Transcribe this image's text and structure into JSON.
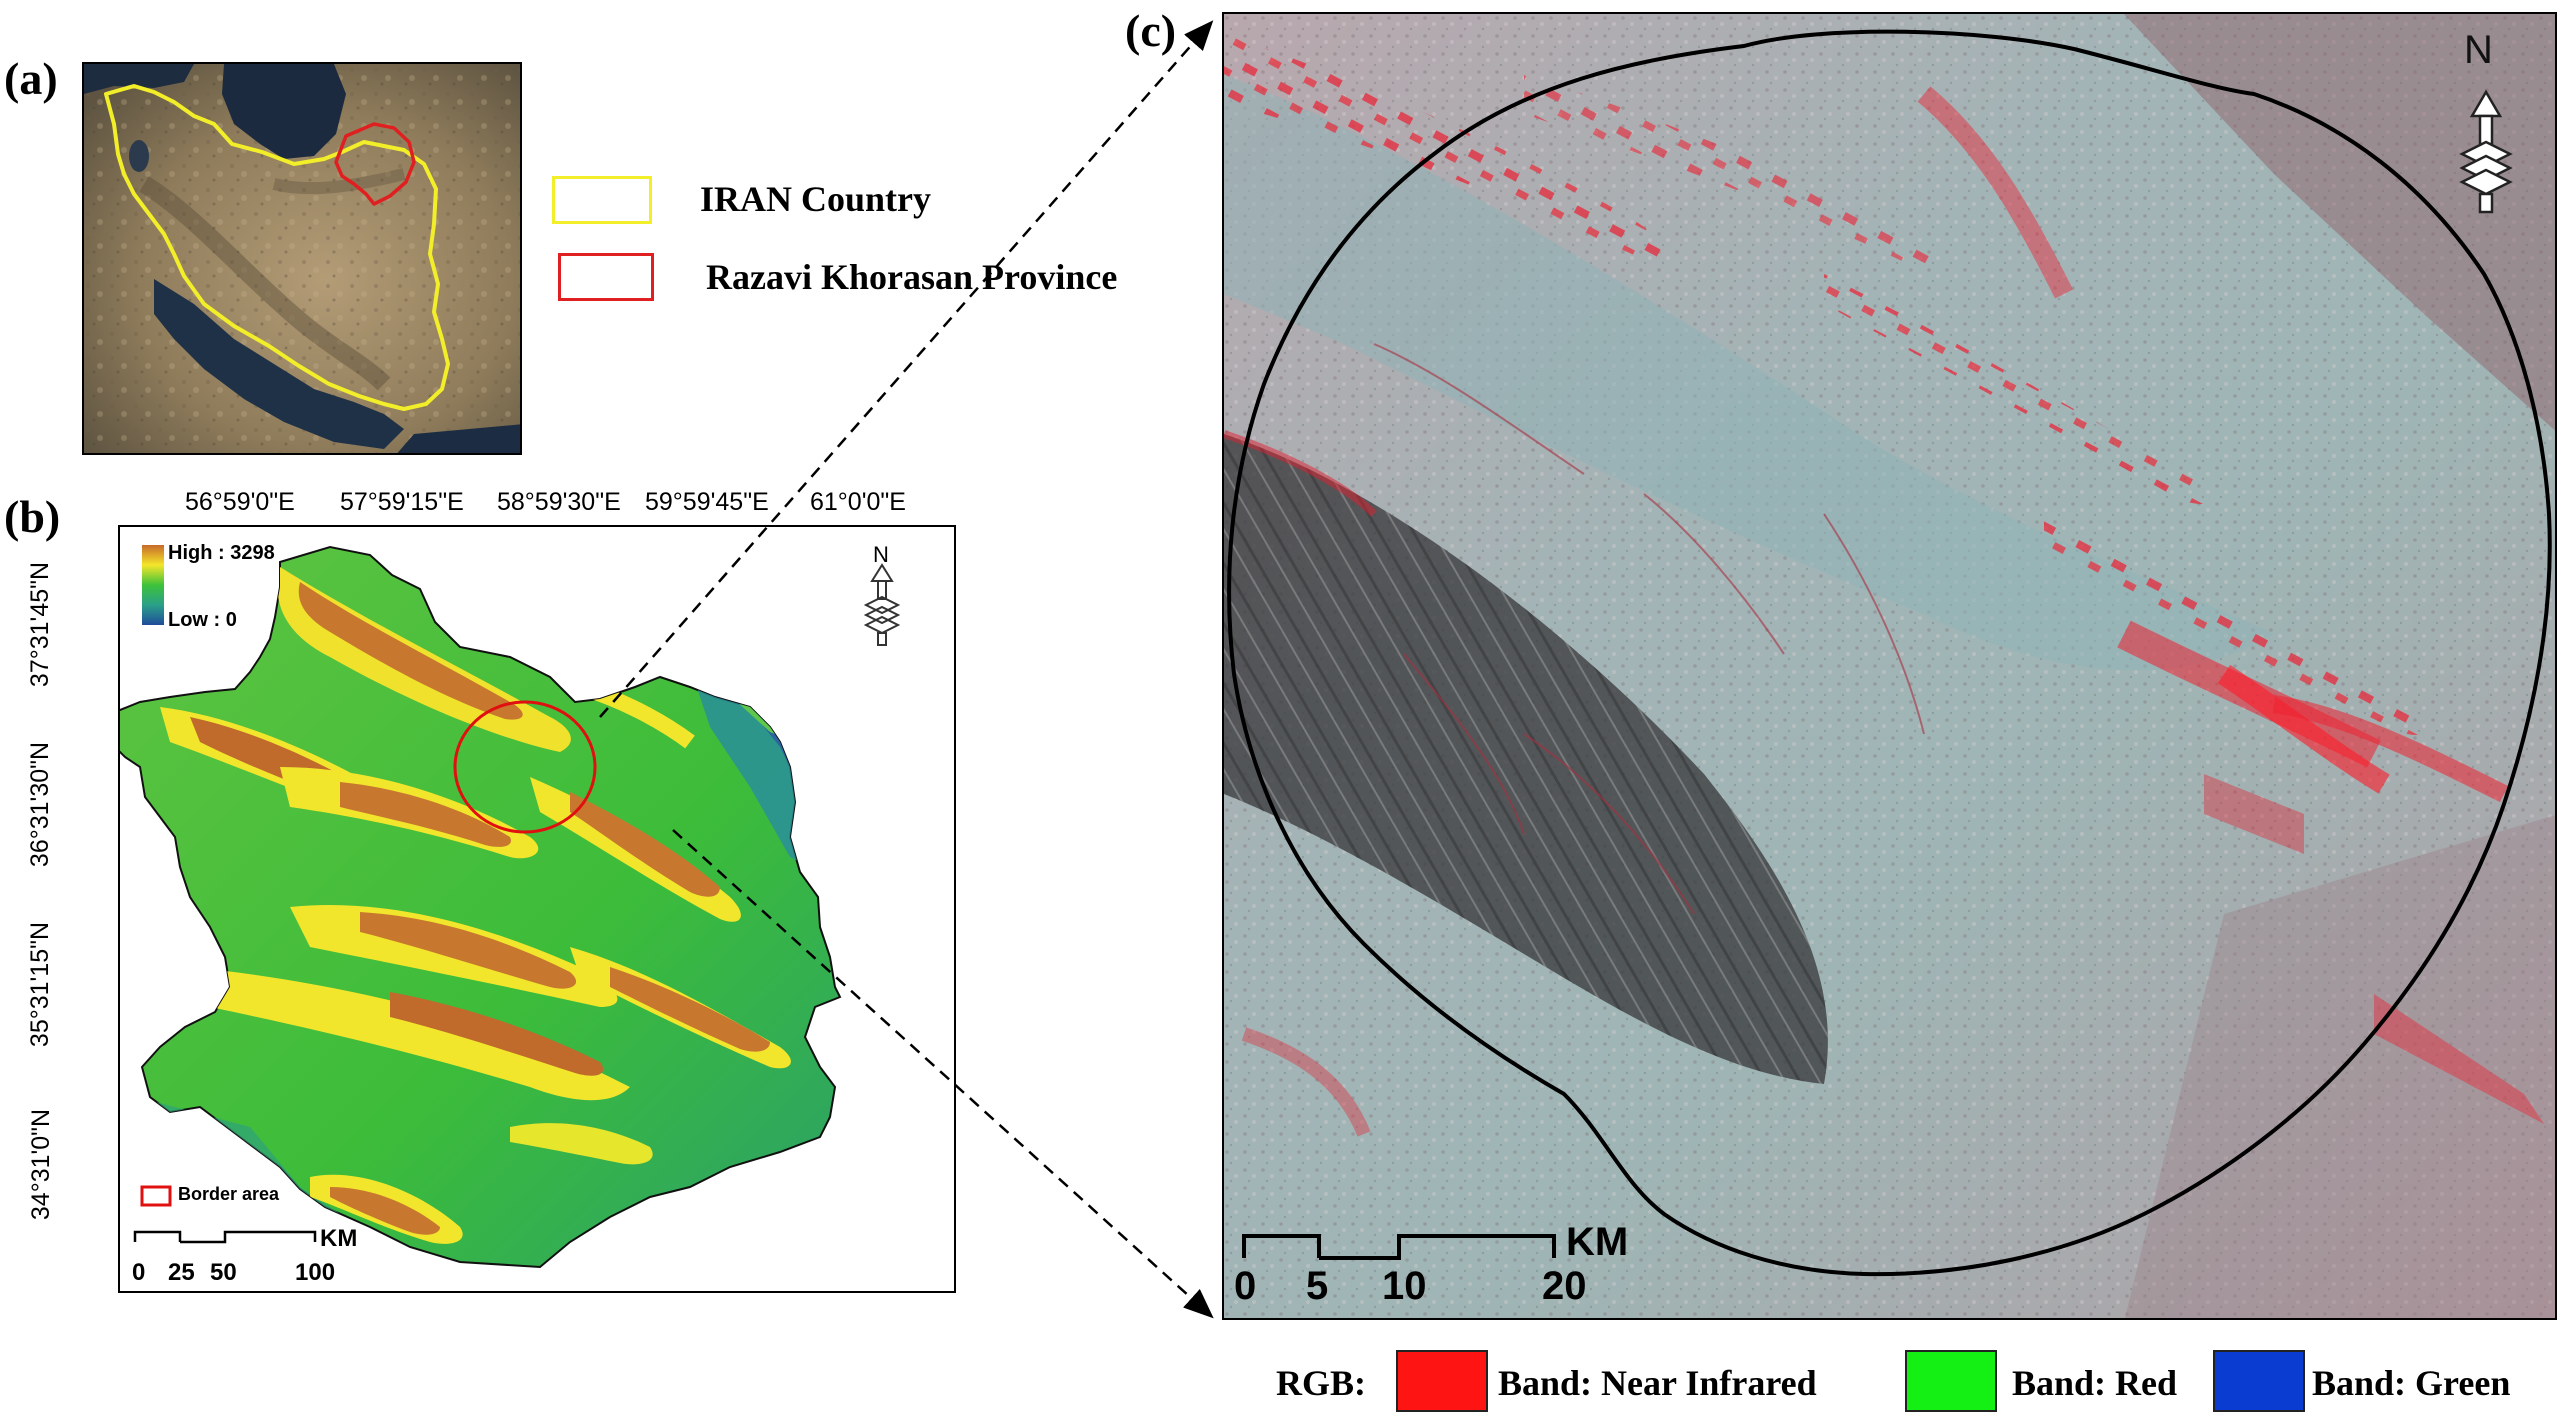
{
  "panel_labels": {
    "a": "(a)",
    "b": "(b)",
    "c": "(c)"
  },
  "panel_a": {
    "legend": [
      {
        "label": "IRAN Country",
        "color": "#f2ee29"
      },
      {
        "label": "Razavi Khorasan Province",
        "color": "#e02020"
      }
    ]
  },
  "panel_b": {
    "top_coords": [
      "56°59'0\"E",
      "57°59'15\"E",
      "58°59'30\"E",
      "59°59'45\"E",
      "61°0'0\"E"
    ],
    "left_coords": [
      "37°31'45\"N",
      "36°31'30\"N",
      "35°31'15\"N",
      "34°31'0\"N"
    ],
    "elevation_legend": {
      "high": "High : 3298",
      "low": "Low : 0"
    },
    "border_area_label": "Border area",
    "north": "N",
    "scale": {
      "unit": "KM",
      "ticks": [
        "0",
        "25",
        "50",
        "100"
      ]
    }
  },
  "panel_c": {
    "north": "N",
    "scale": {
      "unit": "KM",
      "ticks": [
        "0",
        "5",
        "10",
        "20"
      ]
    }
  },
  "rgb_legend": {
    "prefix": "RGB:",
    "items": [
      {
        "label": "Band: Near Infrared",
        "color": "#ff1414"
      },
      {
        "label": "Band: Red",
        "color": "#14ef14"
      },
      {
        "label": "Band: Green",
        "color": "#0a3cd2"
      }
    ]
  }
}
